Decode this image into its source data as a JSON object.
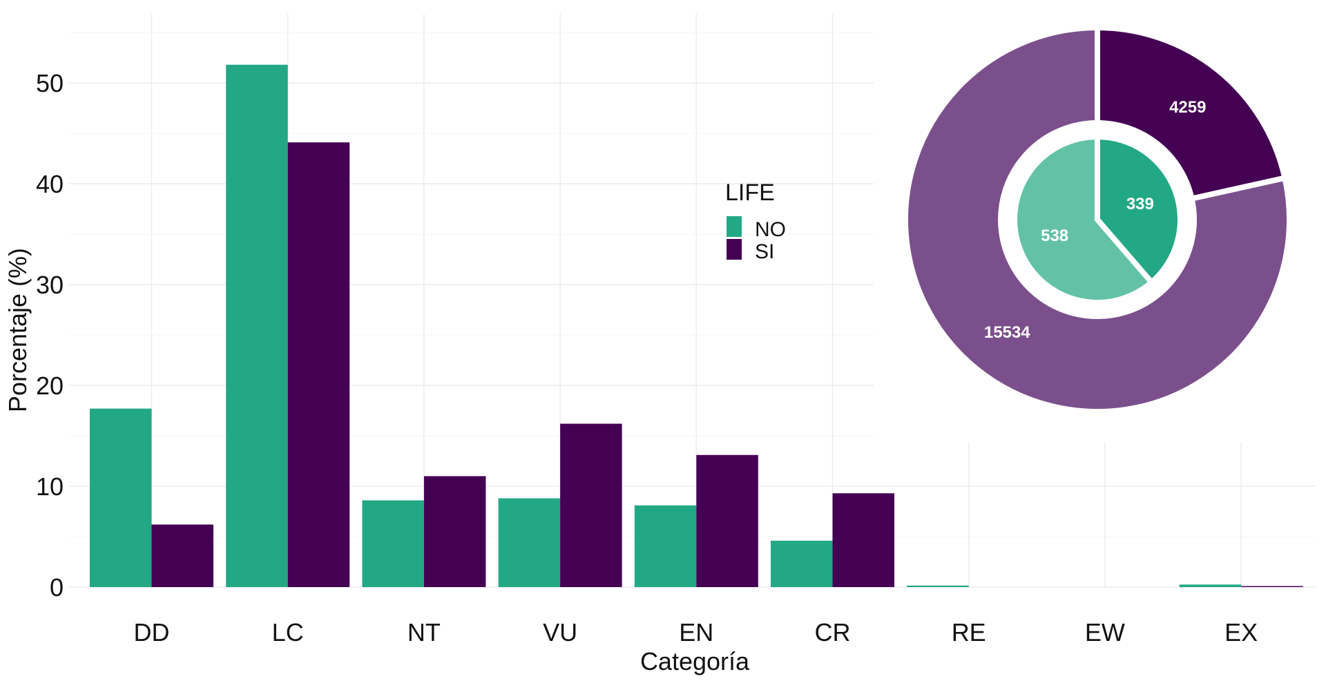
{
  "chart_data": [
    {
      "type": "bar",
      "categories": [
        "DD",
        "LC",
        "NT",
        "VU",
        "EN",
        "CR",
        "RE",
        "EW",
        "EX"
      ],
      "series": [
        {
          "name": "NO",
          "color": "#22a884",
          "values": [
            17.7,
            51.8,
            8.6,
            8.8,
            8.1,
            4.6,
            0.15,
            0,
            0.25
          ]
        },
        {
          "name": "SI",
          "color": "#440154",
          "values": [
            6.2,
            44.1,
            11.0,
            16.2,
            13.1,
            9.3,
            0,
            0,
            0.1
          ]
        }
      ],
      "xlabel": "Categoría",
      "ylabel": "Porcentaje (%)",
      "ylim": [
        0,
        55
      ],
      "yticks": [
        0,
        10,
        20,
        30,
        40,
        50
      ],
      "grid": true,
      "legend": {
        "title": "LIFE",
        "placement": "top-center",
        "entries": [
          "NO",
          "SI"
        ]
      }
    },
    {
      "type": "pie",
      "style": "nested-donut",
      "rings": [
        {
          "ring": "outer",
          "slices": [
            {
              "label": "4259",
              "value": 4259,
              "color": "#440154"
            },
            {
              "label": "15534",
              "value": 15534,
              "color": "#7b4f8c"
            }
          ]
        },
        {
          "ring": "inner",
          "slices": [
            {
              "label": "339",
              "value": 339,
              "color": "#22a884"
            },
            {
              "label": "538",
              "value": 538,
              "color": "#63c2a6"
            }
          ]
        }
      ]
    }
  ]
}
